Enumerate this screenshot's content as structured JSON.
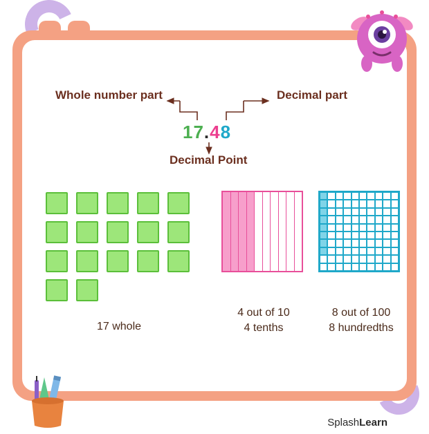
{
  "labels": {
    "whole_part": "Whole number part",
    "decimal_part": "Decimal part",
    "decimal_point": "Decimal Point"
  },
  "number": {
    "whole": "17",
    "dot": ".",
    "tenths": "4",
    "hundredths": "8"
  },
  "colors": {
    "frame": "#f4a183",
    "text": "#6b2f1f",
    "green_fill": "#9de67a",
    "green_border": "#5bbf3a",
    "pink_fill": "#f79fcb",
    "pink_border": "#e84f9a",
    "cyan_fill": "#7fd4e8",
    "cyan_border": "#1fa8c9",
    "swirl": "#cdb3e8"
  },
  "ones": {
    "count": 17,
    "cols": 5
  },
  "tenths": {
    "filled": 4,
    "total": 10
  },
  "hundredths": {
    "filled": 8,
    "total": 100
  },
  "captions": {
    "ones": "17 whole",
    "tenths_l1": "4 out of 10",
    "tenths_l2": "4 tenths",
    "hund_l1": "8 out of 100",
    "hund_l2": "8 hundredths"
  },
  "brand": {
    "part1": "Splash",
    "part2": "Learn"
  }
}
